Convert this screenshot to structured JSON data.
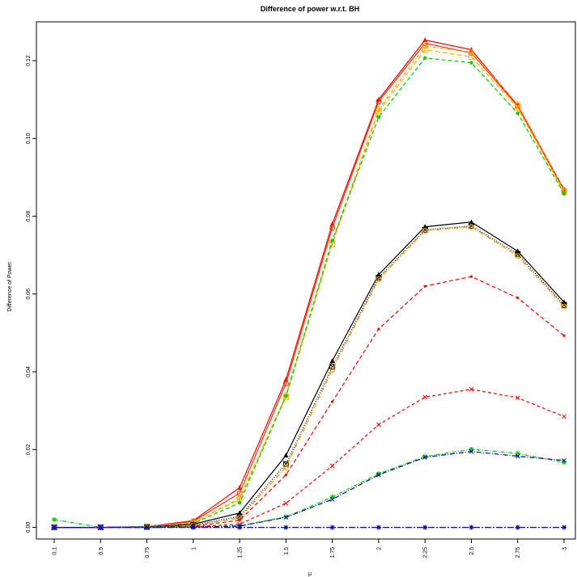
{
  "chart_data": {
    "type": "line",
    "title": "Difference of power w.r.t. BH",
    "xlabel": "μ",
    "ylabel": "Difference of Power",
    "categories": [
      "0.1",
      "0.5",
      "0.75",
      "1",
      "1.25",
      "1.5",
      "1.75",
      "2",
      "2.25",
      "2.5",
      "2.75",
      "3"
    ],
    "ylim": [
      -0.003,
      0.13
    ],
    "yticks": [
      "0.00",
      "0.02",
      "0.04",
      "0.06",
      "0.08",
      "0.10",
      "0.12"
    ],
    "grid": false,
    "series": [
      {
        "color": "#ff0000",
        "dash": "",
        "marker": "triangle",
        "values": [
          0.0,
          0.0,
          0.0002,
          0.0017,
          0.0102,
          0.038,
          0.078,
          0.11,
          0.1253,
          0.1228,
          0.1085,
          0.0869
        ]
      },
      {
        "color": "#ff3300",
        "dash": "",
        "marker": "circle-open",
        "values": [
          0.0,
          0.0,
          0.0002,
          0.0015,
          0.0088,
          0.037,
          0.077,
          0.1095,
          0.1245,
          0.122,
          0.1083,
          0.0866
        ]
      },
      {
        "color": "#ffa500",
        "dash": "4,2,1,2",
        "marker": "diamond-open",
        "values": [
          0.0,
          0.0,
          0.0002,
          0.0012,
          0.0075,
          0.034,
          0.0735,
          0.1075,
          0.1237,
          0.1222,
          0.1088,
          0.0868
        ]
      },
      {
        "color": "#ffb000",
        "dash": "6,3",
        "marker": "square-open",
        "values": [
          0.0,
          0.0,
          0.0002,
          0.0012,
          0.0072,
          0.0335,
          0.0728,
          0.107,
          0.1228,
          0.121,
          0.1078,
          0.0862
        ]
      },
      {
        "color": "#00cc00",
        "dash": "5,3",
        "marker": "circle",
        "values": [
          0.0,
          0.0,
          0.0002,
          0.001,
          0.0063,
          0.0338,
          0.0738,
          0.1055,
          0.1207,
          0.1195,
          0.1065,
          0.0858
        ]
      },
      {
        "color": "#000000",
        "dash": "",
        "marker": "triangle",
        "values": [
          0.0,
          0.0,
          0.0001,
          0.0008,
          0.0037,
          0.0185,
          0.0428,
          0.065,
          0.0773,
          0.0785,
          0.071,
          0.0579
        ]
      },
      {
        "color": "#000000",
        "dash": "1,2",
        "marker": "square-x",
        "values": [
          0.0,
          0.0,
          0.0001,
          0.0006,
          0.0028,
          0.0163,
          0.0413,
          0.0642,
          0.0765,
          0.0775,
          0.0703,
          0.0572
        ]
      },
      {
        "color": "#e69500",
        "dash": "6,2,1,2",
        "marker": "circle-open",
        "values": [
          0.0,
          0.0,
          0.0001,
          0.0005,
          0.0024,
          0.0155,
          0.0405,
          0.0638,
          0.0763,
          0.0773,
          0.0698,
          0.0568
        ]
      },
      {
        "color": "#ff0000",
        "dash": "5,3",
        "marker": "dot",
        "values": [
          0.0,
          0.0,
          0.0001,
          0.0003,
          0.0018,
          0.0135,
          0.0323,
          0.051,
          0.062,
          0.0645,
          0.059,
          0.0493
        ]
      },
      {
        "color": "#ff0000",
        "dash": "4,3",
        "marker": "x",
        "values": [
          0.0,
          0.0,
          0.0,
          0.0002,
          0.0008,
          0.0062,
          0.0158,
          0.0264,
          0.0335,
          0.0355,
          0.0333,
          0.0285
        ]
      },
      {
        "color": "#00cc00",
        "dash": "5,2,1,2",
        "marker": "asterisk",
        "values": [
          0.002,
          0.0,
          0.0,
          0.0001,
          0.0004,
          0.0027,
          0.0078,
          0.0138,
          0.0182,
          0.0201,
          0.019,
          0.0167
        ]
      },
      {
        "color": "#0000cc",
        "dash": "6,2,1,2",
        "marker": "x",
        "values": [
          0.0,
          0.0,
          0.0,
          0.0001,
          0.0003,
          0.0026,
          0.0072,
          0.0135,
          0.018,
          0.0195,
          0.0183,
          0.0172
        ]
      },
      {
        "color": "#0000cc",
        "dash": "8,2,2,2",
        "marker": "asterisk",
        "values": [
          0.0,
          0.0,
          0.0,
          0.0,
          0.0,
          0.0,
          0.0,
          0.0,
          0.0,
          0.0,
          0.0,
          0.0
        ]
      }
    ]
  }
}
